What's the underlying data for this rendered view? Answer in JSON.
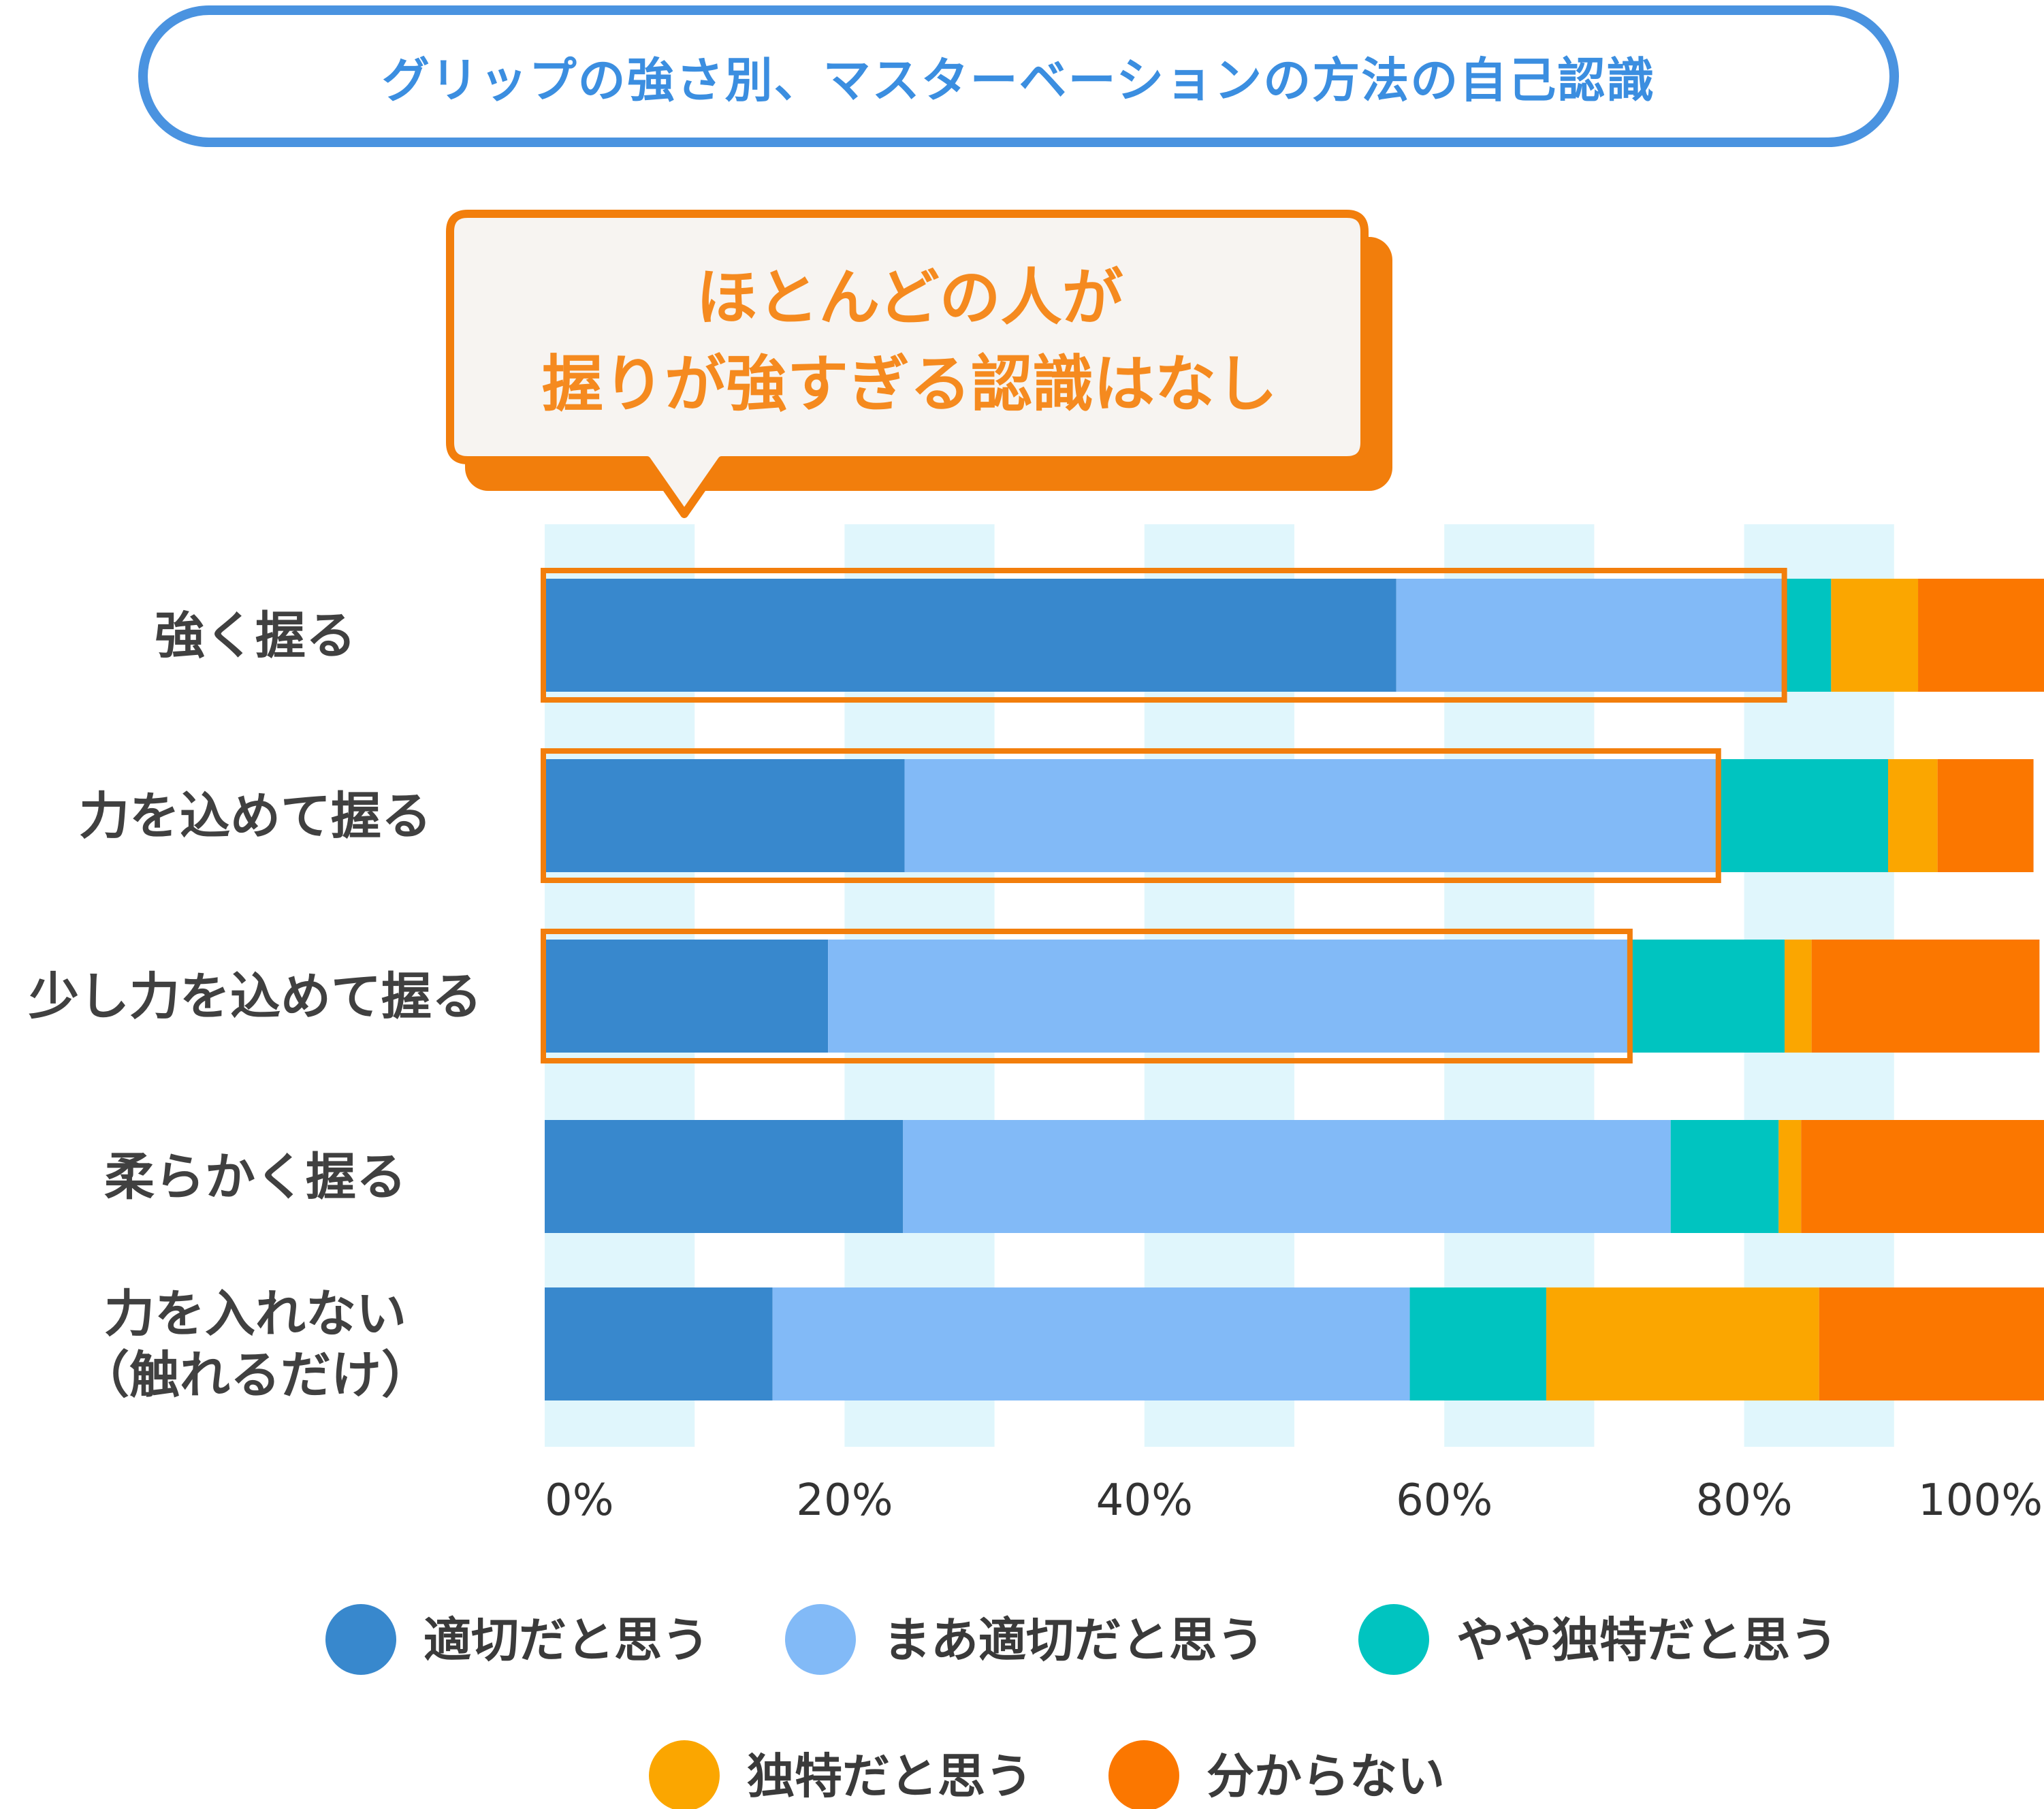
{
  "title": "グリップの強さ別、マスターベーションの方法の自己認識",
  "callout": {
    "line1": "ほとんどの人が",
    "line2": "握りが強すぎる認識はなし"
  },
  "colors": {
    "title_border": "#4a93e0",
    "title_text": "#3b8ee0",
    "callout_border": "#f27e0c",
    "callout_text": "#f58a1f",
    "callout_bg": "#f7f4f1",
    "column_band": "#e0f6fc",
    "highlight": "#f27e0c"
  },
  "chart_data": {
    "type": "bar",
    "orientation": "horizontal",
    "stacked": true,
    "categories": [
      [
        "強く握る"
      ],
      [
        "力を込めて握る"
      ],
      [
        "少し力を込めて握る"
      ],
      [
        "柔らかく握る"
      ],
      [
        "力を入れない",
        "（触れるだけ）"
      ]
    ],
    "series": [
      {
        "name": "適切だと思う",
        "color": "#3888cd",
        "values": [
          56.8,
          24.0,
          18.9,
          23.9,
          15.2
        ]
      },
      {
        "name": "まあ適切だと思う",
        "color": "#82baf7",
        "values": [
          25.7,
          54.1,
          53.3,
          51.2,
          42.5
        ]
      },
      {
        "name": "やや独特だと思う",
        "color": "#00c4c0",
        "values": [
          3.3,
          11.5,
          10.5,
          7.2,
          9.1
        ]
      },
      {
        "name": "独特だと思う",
        "color": "#fba600",
        "values": [
          5.8,
          3.3,
          1.8,
          1.5,
          18.2
        ]
      },
      {
        "name": "分からない",
        "color": "#fb7700",
        "values": [
          8.4,
          6.4,
          15.2,
          16.3,
          15.0
        ]
      }
    ],
    "highlighted_categories": [
      0,
      1,
      2
    ],
    "xlim": [
      0,
      100
    ],
    "xticks": [
      "0%",
      "20%",
      "40%",
      "60%",
      "80%",
      "100%"
    ],
    "legend_position": "bottom"
  }
}
